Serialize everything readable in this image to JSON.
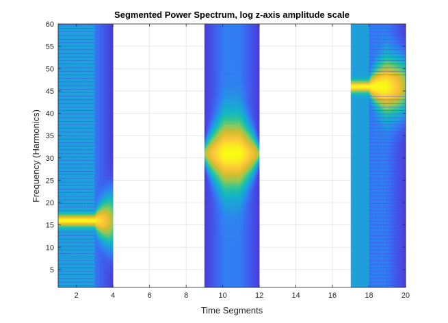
{
  "chart_data": {
    "type": "contour",
    "title": "Segmented Power Spectrum, log z-axis amplitude scale",
    "xlabel": "Time Segments",
    "ylabel": "Frequency (Harmonics)",
    "xlim": [
      1,
      20
    ],
    "ylim": [
      1,
      60
    ],
    "xticks": [
      2,
      4,
      6,
      8,
      10,
      12,
      14,
      16,
      18,
      20
    ],
    "yticks": [
      5,
      10,
      15,
      20,
      25,
      30,
      35,
      40,
      45,
      50,
      55,
      60
    ],
    "grid": true,
    "colormap": [
      "#3e26a8",
      "#4845e0",
      "#3476f5",
      "#1f9ddd",
      "#12b6c3",
      "#35c591",
      "#8ec95a",
      "#d4bc2c",
      "#fcc53a",
      "#f9fb15"
    ],
    "segments": [
      {
        "x_start": 1,
        "x_end": 4,
        "peak_frequency": 16,
        "flat_until": 3
      },
      {
        "x_start": 9,
        "x_end": 12,
        "peak_frequency": 31,
        "flat_until": null
      },
      {
        "x_start": 17,
        "x_end": 20,
        "peak_frequency": 46,
        "flat_until": 18
      }
    ]
  }
}
